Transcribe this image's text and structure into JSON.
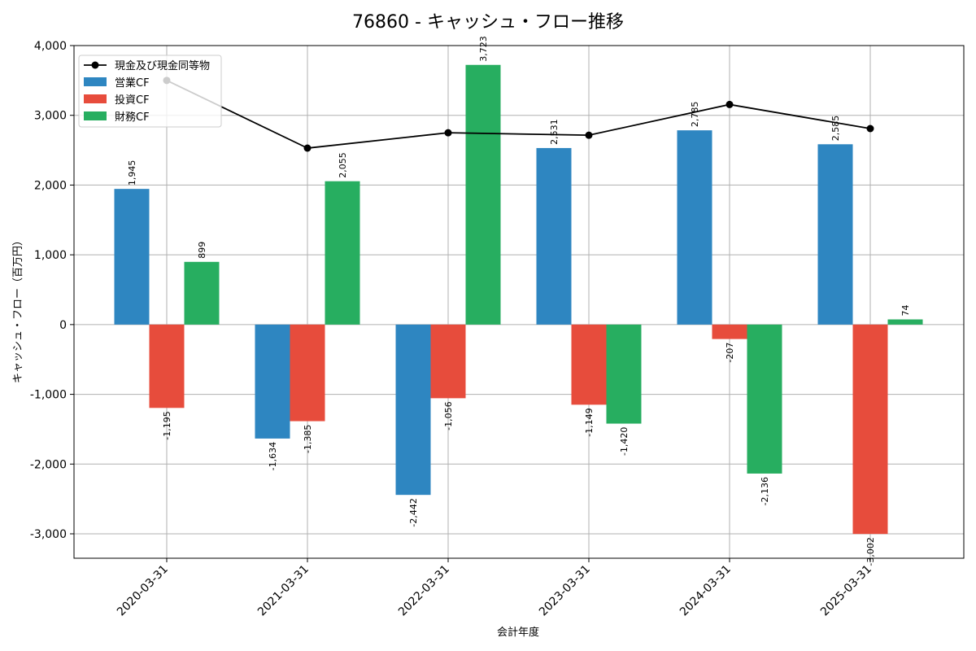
{
  "chart_data": {
    "type": "bar",
    "title": "76860 - キャッシュ・フロー推移",
    "xlabel": "会計年度",
    "ylabel": "キャッシュ・フロー（百万円）",
    "ylim": [
      -3350,
      4000
    ],
    "yticks": [
      -3000,
      -2000,
      -1000,
      0,
      1000,
      2000,
      3000,
      4000
    ],
    "ytick_labels": [
      "-3,000",
      "-2,000",
      "-1,000",
      "0",
      "1,000",
      "2,000",
      "3,000",
      "4,000"
    ],
    "categories": [
      "2020-03-31",
      "2021-03-31",
      "2022-03-31",
      "2023-03-31",
      "2024-03-31",
      "2025-03-31"
    ],
    "grid": true,
    "legend_position": "top-left",
    "series": [
      {
        "name": "営業CF",
        "kind": "bar",
        "color": "#2e86c1",
        "values": [
          1945,
          -1634,
          -2442,
          2531,
          2785,
          2585
        ],
        "labels": [
          "1,945",
          "-1,634",
          "-2,442",
          "2,531",
          "2,785",
          "2,585"
        ]
      },
      {
        "name": "投資CF",
        "kind": "bar",
        "color": "#e74c3c",
        "values": [
          -1195,
          -1385,
          -1056,
          -1149,
          -207,
          -3002
        ],
        "labels": [
          "-1,195",
          "-1,385",
          "-1,056",
          "-1,149",
          "-207",
          "-3,002"
        ]
      },
      {
        "name": "財務CF",
        "kind": "bar",
        "color": "#27ae60",
        "values": [
          899,
          2055,
          3723,
          -1420,
          -2136,
          74
        ],
        "labels": [
          "899",
          "2,055",
          "3,723",
          "-1,420",
          "-2,136",
          "74"
        ]
      },
      {
        "name": "現金及び現金同等物",
        "kind": "line",
        "color": "#000000",
        "values": [
          3500,
          2530,
          2750,
          2715,
          3155,
          2810
        ]
      }
    ]
  }
}
